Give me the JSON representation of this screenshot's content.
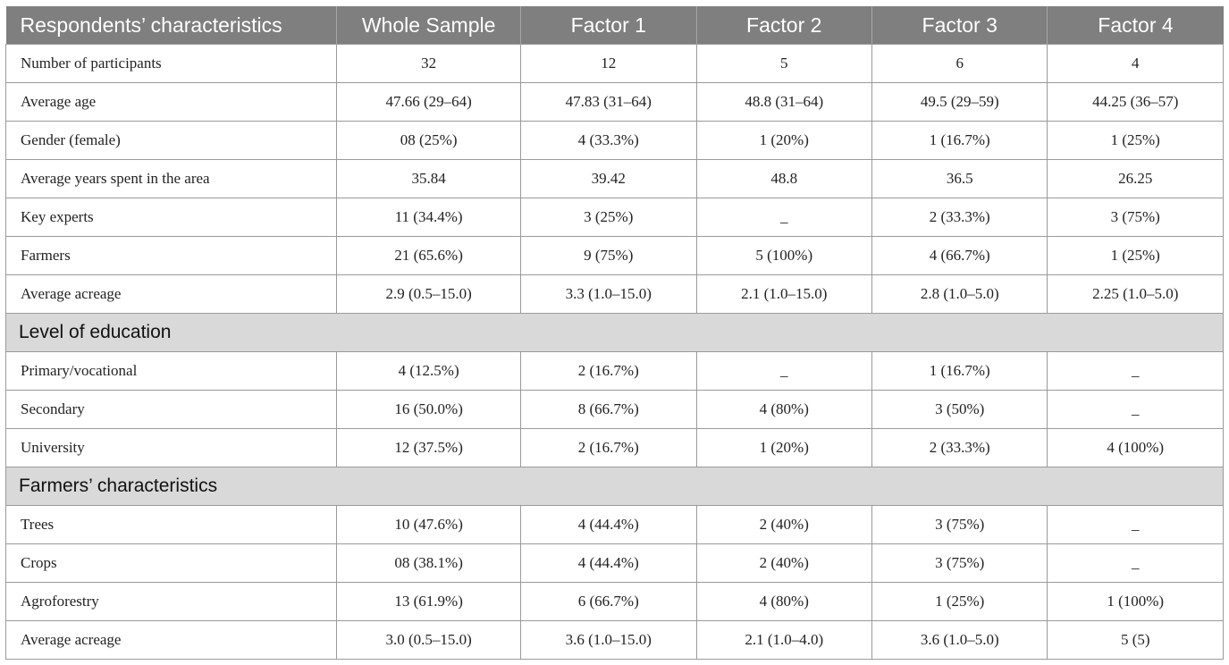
{
  "headers": [
    "Respondents’ characteristics",
    "Whole Sample",
    "Factor 1",
    "Factor 2",
    "Factor 3",
    "Factor 4"
  ],
  "rows": [
    [
      "Number of participants",
      "32",
      "12",
      "5",
      "6",
      "4"
    ],
    [
      "Average age",
      "47.66 (29–64)",
      "47.83 (31–64)",
      "48.8 (31–64)",
      "49.5 (29–59)",
      "44.25 (36–57)"
    ],
    [
      "Gender (female)",
      "08 (25%)",
      "4 (33.3%)",
      "1 (20%)",
      "1 (16.7%)",
      "1 (25%)"
    ],
    [
      "Average years spent in the area",
      "35.84",
      "39.42",
      "48.8",
      "36.5",
      "26.25"
    ],
    [
      "Key experts",
      "11 (34.4%)",
      "3 (25%)",
      "_",
      "2 (33.3%)",
      "3 (75%)"
    ],
    [
      "Farmers",
      "21 (65.6%)",
      "9 (75%)",
      "5 (100%)",
      "4 (66.7%)",
      "1 (25%)"
    ],
    [
      "Average acreage",
      "2.9 (0.5–15.0)",
      "3.3 (1.0–15.0)",
      "2.1 (1.0–15.0)",
      "2.8 (1.0–5.0)",
      "2.25 (1.0–5.0)"
    ]
  ],
  "section1": {
    "title": "Level of education",
    "rows": [
      [
        "Primary/vocational",
        "4 (12.5%)",
        "2 (16.7%)",
        "_",
        "1 (16.7%)",
        "_"
      ],
      [
        "Secondary",
        "16 (50.0%)",
        "8 (66.7%)",
        "4 (80%)",
        "3 (50%)",
        "_"
      ],
      [
        "University",
        "12 (37.5%)",
        "2 (16.7%)",
        "1 (20%)",
        "2 (33.3%)",
        "4 (100%)"
      ]
    ]
  },
  "section2": {
    "title": "Farmers’ characteristics",
    "rows": [
      [
        "Trees",
        "10 (47.6%)",
        "4 (44.4%)",
        "2 (40%)",
        "3 (75%)",
        "_"
      ],
      [
        "Crops",
        "08 (38.1%)",
        "4 (44.4%)",
        "2 (40%)",
        "3 (75%)",
        "_"
      ],
      [
        "Agroforestry",
        "13 (61.9%)",
        "6 (66.7%)",
        "4 (80%)",
        "1 (25%)",
        "1 (100%)"
      ],
      [
        "Average acreage",
        "3.0 (0.5–15.0)",
        "3.6 (1.0–15.0)",
        "2.1 (1.0–4.0)",
        "3.6 (1.0–5.0)",
        "5 (5)"
      ]
    ]
  }
}
